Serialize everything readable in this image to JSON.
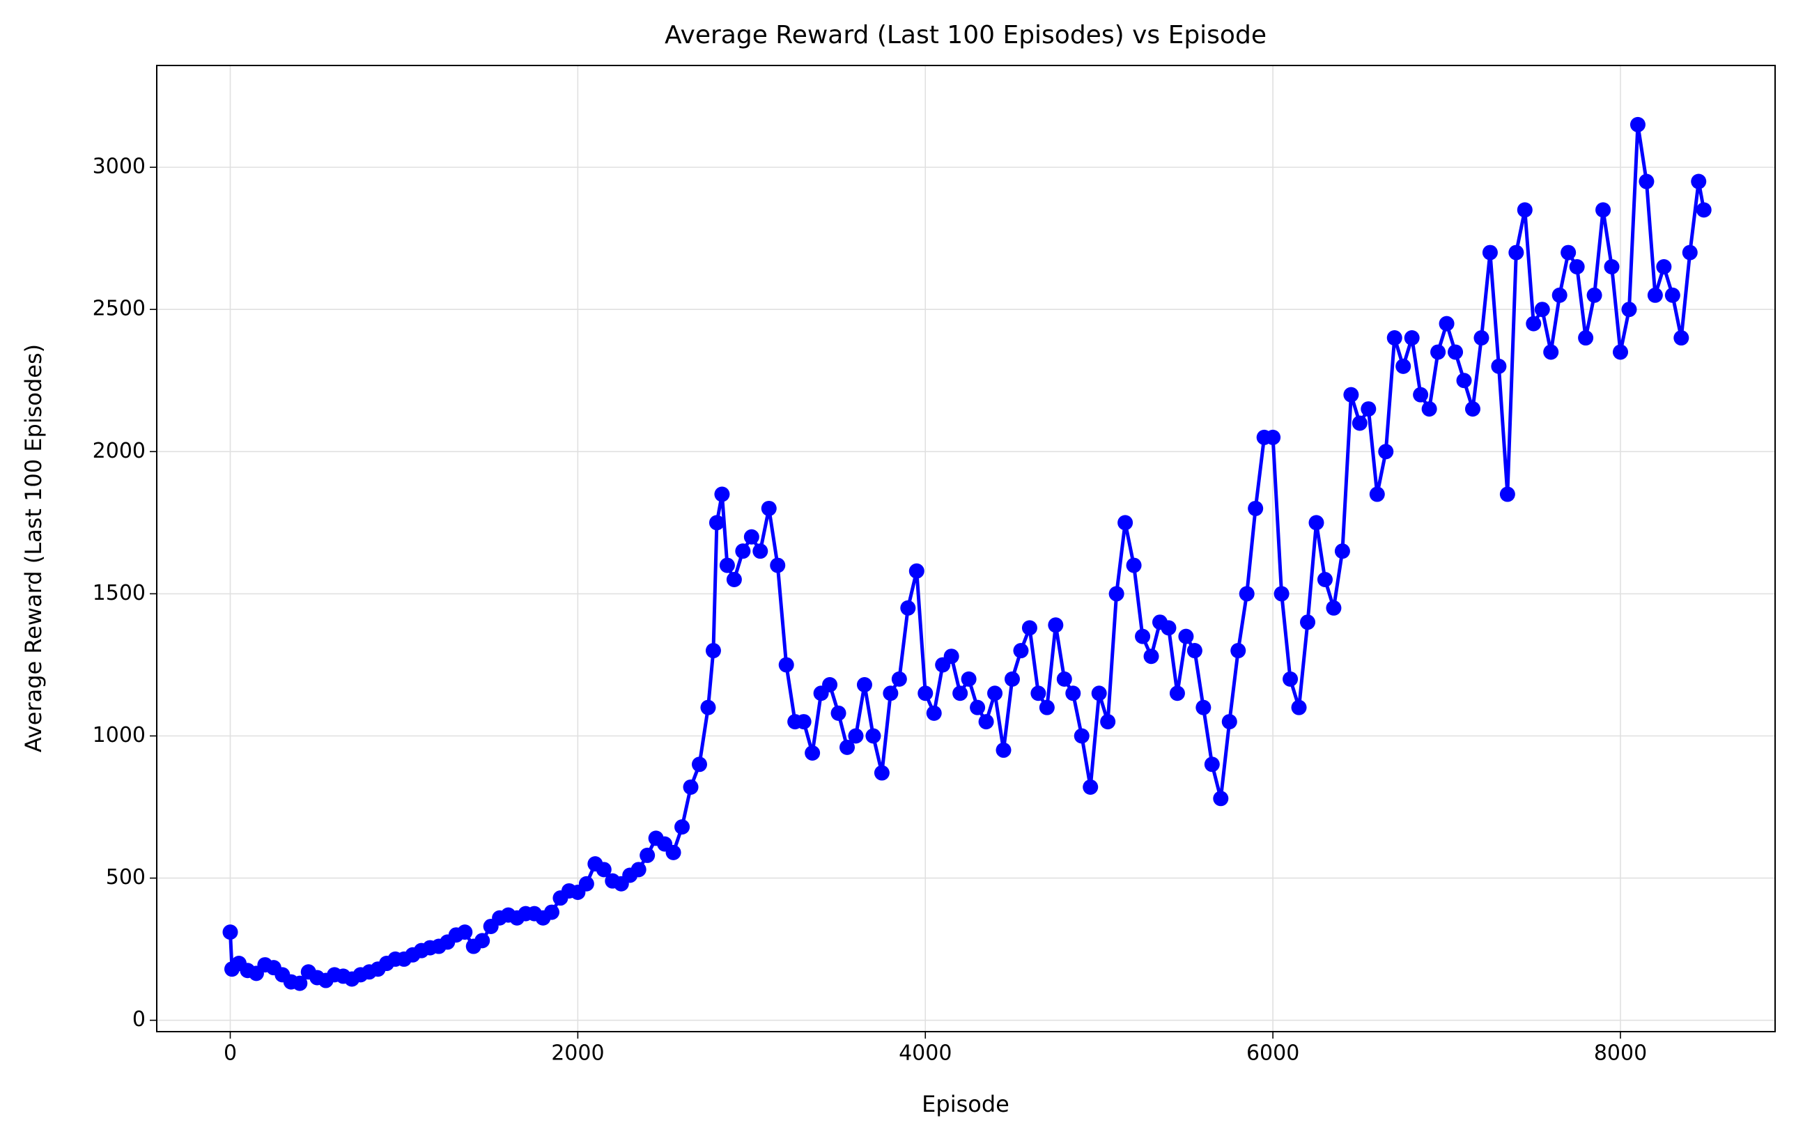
{
  "chart_data": {
    "type": "line",
    "title": "Average Reward (Last 100 Episodes) vs Episode",
    "x_label": "Episode",
    "y_label": "Average Reward (Last 100 Episodes)",
    "xlim": [
      -423,
      8890
    ],
    "ylim": [
      -40,
      3358
    ],
    "xticks": [
      0,
      2000,
      4000,
      6000,
      8000
    ],
    "yticks": [
      0,
      500,
      1000,
      1500,
      2000,
      2500,
      3000
    ],
    "grid": true,
    "series": [
      {
        "name": "Average Reward",
        "color": "#0000ff",
        "x": [
          0,
          10,
          50,
          100,
          150,
          200,
          250,
          300,
          350,
          400,
          450,
          500,
          550,
          600,
          650,
          700,
          750,
          800,
          850,
          900,
          950,
          1000,
          1050,
          1100,
          1150,
          1200,
          1250,
          1300,
          1350,
          1400,
          1450,
          1500,
          1550,
          1600,
          1650,
          1700,
          1750,
          1800,
          1850,
          1900,
          1950,
          2000,
          2050,
          2100,
          2150,
          2200,
          2250,
          2300,
          2350,
          2400,
          2450,
          2500,
          2550,
          2600,
          2650,
          2700,
          2750,
          2780,
          2800,
          2830,
          2860,
          2900,
          2950,
          3000,
          3050,
          3100,
          3150,
          3200,
          3250,
          3300,
          3350,
          3400,
          3450,
          3500,
          3550,
          3600,
          3650,
          3700,
          3750,
          3800,
          3850,
          3900,
          3950,
          4000,
          4050,
          4100,
          4150,
          4200,
          4250,
          4300,
          4350,
          4400,
          4450,
          4500,
          4550,
          4600,
          4650,
          4700,
          4750,
          4800,
          4850,
          4900,
          4950,
          5000,
          5050,
          5100,
          5150,
          5200,
          5250,
          5300,
          5350,
          5400,
          5450,
          5500,
          5550,
          5600,
          5650,
          5700,
          5750,
          5800,
          5850,
          5900,
          5950,
          6000,
          6050,
          6100,
          6150,
          6200,
          6250,
          6300,
          6350,
          6400,
          6450,
          6500,
          6550,
          6600,
          6650,
          6700,
          6750,
          6800,
          6850,
          6900,
          6950,
          7000,
          7050,
          7100,
          7150,
          7200,
          7250,
          7300,
          7350,
          7400,
          7450,
          7500,
          7550,
          7600,
          7650,
          7700,
          7750,
          7800,
          7850,
          7900,
          7950,
          8000,
          8050,
          8100,
          8150,
          8200,
          8250,
          8300,
          8350,
          8400,
          8450,
          8480
        ],
        "values": [
          310,
          180,
          200,
          175,
          165,
          195,
          185,
          160,
          135,
          130,
          170,
          150,
          140,
          160,
          155,
          145,
          160,
          170,
          180,
          200,
          215,
          215,
          230,
          245,
          255,
          260,
          275,
          300,
          310,
          260,
          280,
          330,
          360,
          370,
          360,
          375,
          375,
          360,
          380,
          430,
          455,
          450,
          480,
          550,
          530,
          490,
          480,
          510,
          530,
          580,
          640,
          620,
          590,
          680,
          820,
          900,
          1100,
          1300,
          1750,
          1850,
          1600,
          1550,
          1650,
          1700,
          1650,
          1800,
          1600,
          1250,
          1050,
          1050,
          940,
          1150,
          1180,
          1080,
          960,
          1000,
          1180,
          1000,
          870,
          1150,
          1200,
          1450,
          1580,
          1150,
          1080,
          1250,
          1280,
          1150,
          1200,
          1100,
          1050,
          1150,
          950,
          1200,
          1300,
          1380,
          1150,
          1100,
          1390,
          1200,
          1150,
          1000,
          820,
          1150,
          1050,
          1500,
          1750,
          1600,
          1350,
          1280,
          1400,
          1380,
          1150,
          1350,
          1300,
          1100,
          900,
          780,
          1050,
          1300,
          1500,
          1800,
          2050,
          2050,
          1500,
          1200,
          1100,
          1400,
          1750,
          1550,
          1450,
          1650,
          2200,
          2100,
          2150,
          1850,
          2000,
          2400,
          2300,
          2400,
          2200,
          2150,
          2350,
          2450,
          2350,
          2250,
          2150,
          2400,
          2700,
          2300,
          1850,
          2700,
          2850,
          2450,
          2500,
          2350,
          2550,
          2700,
          2650,
          2400,
          2550,
          2850,
          2650,
          2350,
          2500,
          3150,
          2950,
          2550,
          2650,
          2550,
          2400,
          2700,
          2950,
          2850
        ]
      }
    ]
  }
}
